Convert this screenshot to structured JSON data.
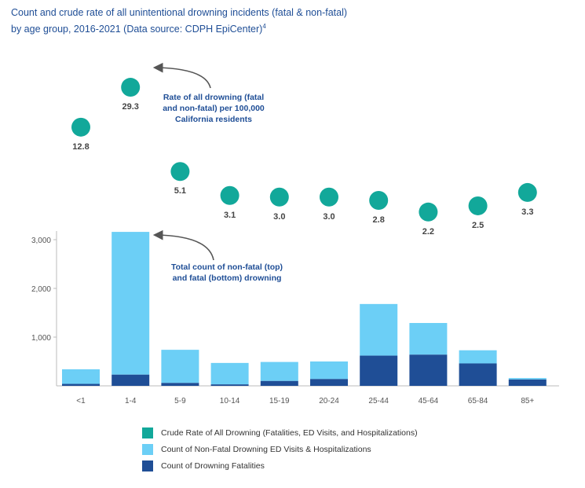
{
  "title_line1": "Count and crude rate of all unintentional drowning incidents (fatal & non-fatal)",
  "title_line2": "by age group, 2016-2021 (Data source: CDPH EpiCenter)",
  "title_sup": "4",
  "colors": {
    "rate": "#12a89a",
    "nonfatal": "#6ccff6",
    "fatal": "#1f4e96",
    "title": "#1f4e96",
    "axis": "#999999"
  },
  "annotations": {
    "rate_note": [
      "Rate of all drowning (fatal",
      "and non-fatal) per 100,000",
      "California residents"
    ],
    "count_note": [
      "Total count of non-fatal (top)",
      "and fatal (bottom) drowning"
    ]
  },
  "legend": [
    {
      "label": "Crude Rate of All Drowning (Fatalities, ED Visits, and Hospitalizations)",
      "color": "#12a89a"
    },
    {
      "label": "Count of Non-Fatal Drowning ED Visits & Hospitalizations",
      "color": "#6ccff6"
    },
    {
      "label": "Count of Drowning Fatalities",
      "color": "#1f4e96"
    }
  ],
  "chart_data": {
    "type": "bar",
    "stacked": true,
    "categories": [
      "<1",
      "1-4",
      "5-9",
      "10-14",
      "15-19",
      "20-24",
      "25-44",
      "45-64",
      "65-84",
      "85+"
    ],
    "series": [
      {
        "name": "Count of Drowning Fatalities",
        "values": [
          40,
          230,
          60,
          30,
          100,
          140,
          620,
          640,
          460,
          130
        ]
      },
      {
        "name": "Count of Non-Fatal Drowning ED Visits & Hospitalizations",
        "values": [
          300,
          2930,
          680,
          440,
          390,
          360,
          1060,
          650,
          270,
          30
        ]
      },
      {
        "name": "Crude Rate of All Drowning (Fatalities, ED Visits, and Hospitalizations)",
        "values": [
          12.8,
          29.3,
          5.1,
          3.1,
          3.0,
          3.0,
          2.8,
          2.2,
          2.5,
          3.3
        ],
        "labels": [
          "12.8",
          "29.3",
          "5.1",
          "3.1",
          "3.0",
          "3.0",
          "2.8",
          "2.2",
          "2.5",
          "3.3"
        ]
      }
    ],
    "yticks": [
      1000,
      2000,
      3000
    ],
    "ytick_labels": [
      "1,000",
      "2,000",
      "3,000"
    ],
    "ylim": [
      0,
      3200
    ],
    "xlabel": "",
    "ylabel": ""
  }
}
